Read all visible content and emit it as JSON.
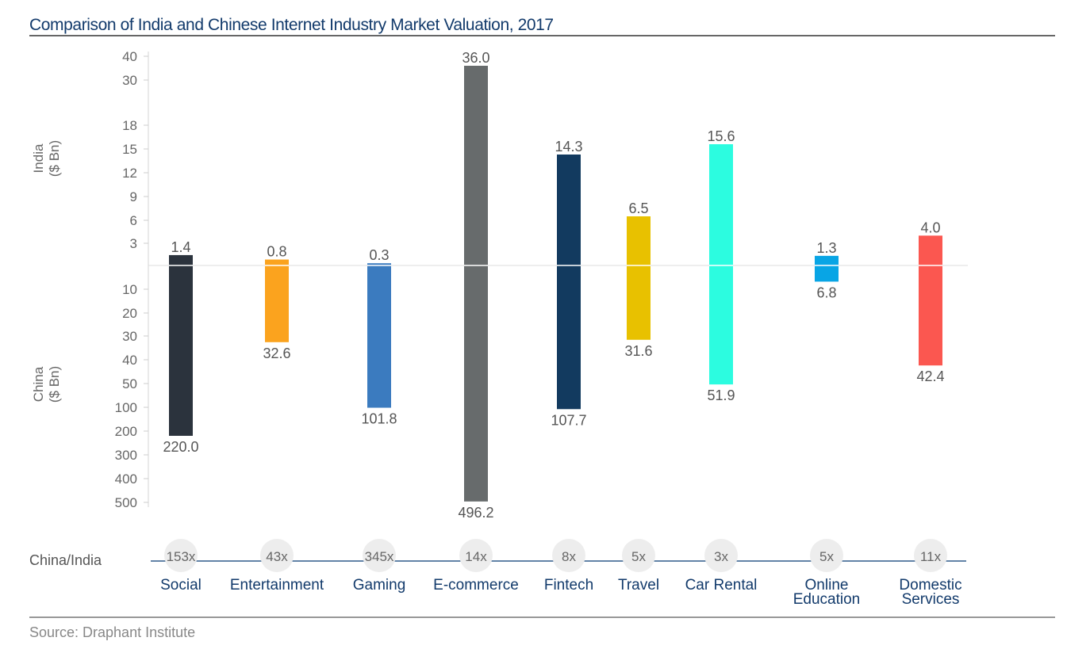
{
  "chart_data": {
    "type": "bar",
    "title": "Comparison of India and Chinese Internet Industry Market Valuation, 2017",
    "upper_axis_label": [
      "India",
      "($ Bn)"
    ],
    "lower_axis_label": [
      "China",
      "($ Bn)"
    ],
    "upper_ticks": [
      "40",
      "30",
      "18",
      "15",
      "12",
      "9",
      "6",
      "3"
    ],
    "lower_ticks": [
      "10",
      "20",
      "30",
      "40",
      "50",
      "100",
      "200",
      "300",
      "400",
      "500"
    ],
    "categories": [
      {
        "label": [
          "Social"
        ],
        "india": 1.4,
        "china": 220.0,
        "india_label": "1.4",
        "china_label": "220.0",
        "ratio": "153x",
        "color": "#2b333d"
      },
      {
        "label": [
          "Entertainment"
        ],
        "india": 0.8,
        "china": 32.6,
        "india_label": "0.8",
        "china_label": "32.6",
        "ratio": "43x",
        "color": "#fba31e"
      },
      {
        "label": [
          "Gaming"
        ],
        "india": 0.3,
        "china": 101.8,
        "india_label": "0.3",
        "china_label": "101.8",
        "ratio": "345x",
        "color": "#3b7bbf"
      },
      {
        "label": [
          "E-commerce"
        ],
        "india": 36.0,
        "china": 496.2,
        "india_label": "36.0",
        "china_label": "496.2",
        "ratio": "14x",
        "color": "#676b6c"
      },
      {
        "label": [
          "Fintech"
        ],
        "india": 14.3,
        "china": 107.7,
        "india_label": "14.3",
        "china_label": "107.7",
        "ratio": "8x",
        "color": "#123a5f"
      },
      {
        "label": [
          "Travel"
        ],
        "india": 6.5,
        "china": 31.6,
        "india_label": "6.5",
        "china_label": "31.6",
        "ratio": "5x",
        "color": "#e8c100"
      },
      {
        "label": [
          "Car Rental"
        ],
        "india": 15.6,
        "china": 51.9,
        "india_label": "15.6",
        "china_label": "51.9",
        "ratio": "3x",
        "color": "#2cfce0"
      },
      {
        "label": [
          "Online",
          "Education"
        ],
        "india": 1.3,
        "china": 6.8,
        "india_label": "1.3",
        "china_label": "6.8",
        "ratio": "5x",
        "color": "#08a5e5"
      },
      {
        "label": [
          "Domestic",
          "Services"
        ],
        "india": 4.0,
        "china": 42.4,
        "india_label": "4.0",
        "china_label": "42.4",
        "ratio": "11x",
        "color": "#fb5750"
      }
    ],
    "ratio_row_label": "China/India",
    "source": "Source: Draphant Institute",
    "grid": false
  }
}
